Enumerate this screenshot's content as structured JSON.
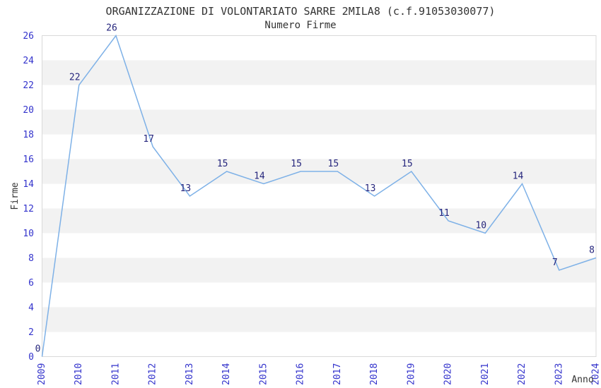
{
  "chart_data": {
    "type": "line",
    "title": "ORGANIZZAZIONE DI VOLONTARIATO SARRE 2MILA8 (c.f.91053030077)",
    "subtitle": "Numero Firme",
    "xlabel": "Anno",
    "ylabel": "Firme",
    "categories": [
      "2009",
      "2010",
      "2011",
      "2012",
      "2013",
      "2014",
      "2015",
      "2016",
      "2017",
      "2018",
      "2019",
      "2020",
      "2021",
      "2022",
      "2023",
      "2024"
    ],
    "values": [
      0,
      22,
      26,
      17,
      13,
      15,
      14,
      15,
      15,
      13,
      15,
      11,
      10,
      14,
      7,
      8
    ],
    "ylim": [
      0,
      26
    ],
    "ytick_step": 2,
    "point_labels": true,
    "legend": "none",
    "grid": "alternating-horizontal-bands",
    "colors": {
      "line": "#7EB1E7",
      "tick_labels": "#3333CC",
      "point_labels": "#26267D",
      "band_fill": "#F2F2F2",
      "plot_border": "#D9D9D9",
      "title_text": "#333333",
      "axis_title_text": "#333333",
      "background": "#FFFFFF"
    }
  }
}
